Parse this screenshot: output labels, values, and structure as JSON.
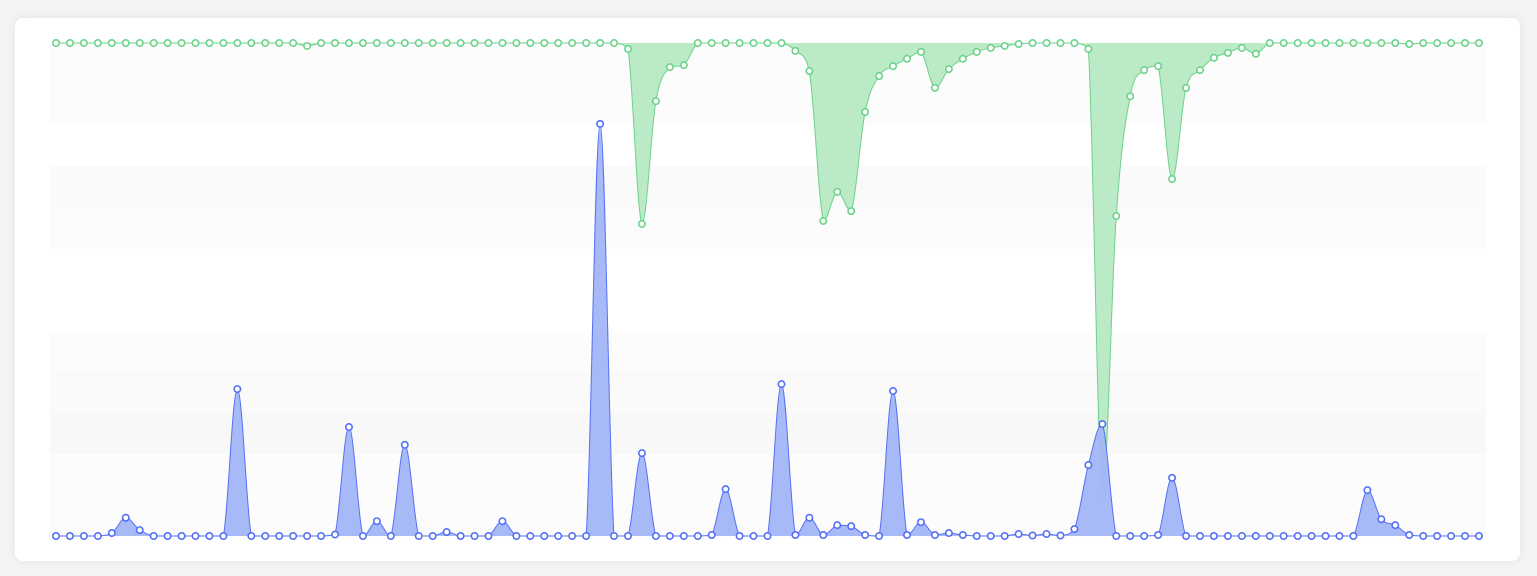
{
  "chart_data": {
    "type": "area",
    "title": "",
    "xlabel": "",
    "ylabel": "",
    "ylim": [
      0,
      100
    ],
    "grid": false,
    "split_area": true,
    "x": [
      0,
      1,
      2,
      3,
      4,
      5,
      6,
      7,
      8,
      9,
      10,
      11,
      12,
      13,
      14,
      15,
      16,
      17,
      18,
      19,
      20,
      21,
      22,
      23,
      24,
      25,
      26,
      27,
      28,
      29,
      30,
      31,
      32,
      33,
      34,
      35,
      36,
      37,
      38,
      39,
      40,
      41,
      42,
      43,
      44,
      45,
      46,
      47,
      48,
      49,
      50,
      51,
      52,
      53,
      54,
      55,
      56,
      57,
      58,
      59,
      60,
      61,
      62,
      63,
      64,
      65,
      66,
      67,
      68,
      69,
      70,
      71,
      72,
      73,
      74,
      75,
      76,
      77,
      78,
      79,
      80,
      81,
      82,
      83,
      84,
      85,
      86,
      87,
      88,
      89,
      90,
      91,
      92,
      93,
      94,
      95,
      96,
      97,
      98,
      99,
      100,
      101,
      102
    ],
    "series": [
      {
        "direction": "up-from-bottom",
        "color": "#5470f6",
        "fill": "#a3b5f7",
        "values": [
          0,
          0,
          0,
          0,
          0.6,
          3.7,
          1.2,
          0,
          0,
          0,
          0,
          0,
          0,
          29.8,
          0,
          0,
          0,
          0,
          0,
          0,
          0.3,
          22.1,
          0,
          3.0,
          0,
          18.5,
          0,
          0,
          0.8,
          0,
          0,
          0,
          3.0,
          0,
          0,
          0,
          0,
          0,
          0,
          83.6,
          0,
          0,
          16.8,
          0,
          0,
          0,
          0,
          0.2,
          9.5,
          0,
          0,
          0,
          30.8,
          0.2,
          3.7,
          0.2,
          2.2,
          2.0,
          0.2,
          0,
          29.4,
          0.2,
          2.8,
          0.2,
          0.6,
          0.2,
          0,
          0,
          0,
          0.4,
          0.1,
          0.4,
          0.1,
          1.4,
          14.4,
          22.7,
          0,
          0,
          0,
          0.2,
          11.8,
          0,
          0,
          0,
          0,
          0,
          0,
          0,
          0,
          0,
          0,
          0,
          0,
          0,
          9.3,
          3.4,
          2.2,
          0.2,
          0,
          0,
          0,
          0,
          0
        ]
      },
      {
        "direction": "down-from-top",
        "color": "#6dd28a",
        "fill": "#b7e9c4",
        "values": [
          0,
          0,
          0,
          0,
          0,
          0,
          0,
          0,
          0,
          0,
          0,
          0,
          0,
          0,
          0,
          0,
          0,
          0,
          0.6,
          0,
          0,
          0,
          0,
          0,
          0,
          0,
          0,
          0,
          0,
          0,
          0,
          0,
          0,
          0,
          0,
          0,
          0,
          0,
          0,
          0,
          0,
          1.2,
          36.7,
          11.8,
          4.9,
          4.5,
          0,
          0,
          0,
          0,
          0,
          0,
          0,
          1.6,
          5.7,
          36.1,
          30.2,
          34.1,
          14.0,
          6.7,
          4.7,
          3.2,
          1.8,
          9.1,
          5.3,
          3.2,
          1.8,
          1.0,
          0.6,
          0.2,
          0,
          0,
          0,
          0,
          1.2,
          91.3,
          35.1,
          10.8,
          5.5,
          4.7,
          27.6,
          9.1,
          5.5,
          3.0,
          2.0,
          1.0,
          2.2,
          0,
          0,
          0,
          0,
          0,
          0,
          0,
          0,
          0,
          0,
          0.2,
          0,
          0,
          0,
          0,
          0
        ]
      }
    ]
  }
}
